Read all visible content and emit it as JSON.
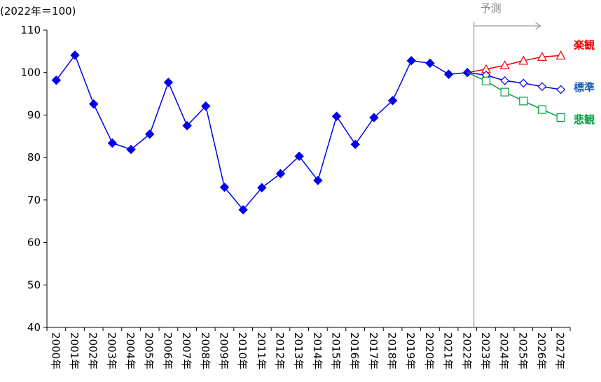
{
  "chart_data": {
    "type": "line",
    "unit_label": "(2022年＝100)",
    "forecast_label": "予測",
    "categories": [
      "2000年",
      "2001年",
      "2002年",
      "2003年",
      "2004年",
      "2005年",
      "2006年",
      "2007年",
      "2008年",
      "2009年",
      "2010年",
      "2011年",
      "2012年",
      "2013年",
      "2014年",
      "2015年",
      "2016年",
      "2017年",
      "2018年",
      "2019年",
      "2020年",
      "2021年",
      "2022年",
      "2023年",
      "2024年",
      "2025年",
      "2026年",
      "2027年"
    ],
    "ylim": [
      40,
      110
    ],
    "yticks": [
      40,
      50,
      60,
      70,
      80,
      90,
      100,
      110
    ],
    "grid": false,
    "series": [
      {
        "name": "",
        "color": "#0000ee",
        "marker": "diamond-filled",
        "values": [
          98.2,
          104.1,
          92.6,
          83.4,
          81.9,
          85.5,
          97.7,
          87.5,
          92.1,
          73.0,
          67.7,
          72.9,
          76.2,
          80.3,
          74.6,
          89.7,
          83.1,
          89.4,
          93.4,
          102.8,
          102.2,
          99.6,
          100.0,
          null,
          null,
          null,
          null,
          null
        ]
      },
      {
        "name": "楽観",
        "color": "#ee0000",
        "marker": "triangle-open",
        "values": [
          null,
          null,
          null,
          null,
          null,
          null,
          null,
          null,
          null,
          null,
          null,
          null,
          null,
          null,
          null,
          null,
          null,
          null,
          null,
          null,
          null,
          null,
          null,
          100.8,
          101.7,
          102.8,
          103.7,
          104.0
        ]
      },
      {
        "name": "標準",
        "color": "#1a5fb4",
        "line_color": "#0000ee",
        "marker": "diamond-open",
        "values": [
          null,
          null,
          null,
          null,
          null,
          null,
          null,
          null,
          null,
          null,
          null,
          null,
          null,
          null,
          null,
          null,
          null,
          null,
          null,
          null,
          null,
          null,
          100.0,
          99.4,
          98.1,
          97.5,
          96.7,
          96.0
        ]
      },
      {
        "name": "悲観",
        "color": "#00a040",
        "marker": "square-open",
        "values": [
          null,
          null,
          null,
          null,
          null,
          null,
          null,
          null,
          null,
          null,
          null,
          null,
          null,
          null,
          null,
          null,
          null,
          null,
          null,
          null,
          null,
          null,
          null,
          98.0,
          95.4,
          93.3,
          91.3,
          89.4
        ]
      }
    ]
  }
}
